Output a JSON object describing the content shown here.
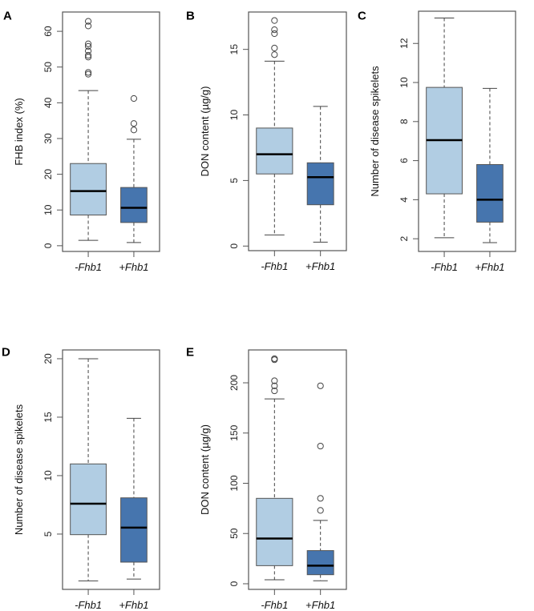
{
  "chart_data": [
    {
      "panel": "A",
      "type": "boxplot",
      "ylabel": "FHB index (%)",
      "ylim": [
        -1.6,
        65.4
      ],
      "yticks": [
        "0",
        "10",
        "20",
        "30",
        "40",
        "50",
        "60"
      ],
      "categories": [
        "-Fhb1",
        "+Fhb1"
      ],
      "colors": [
        "#b1cde3",
        "#4675ae"
      ],
      "boxes": [
        {
          "min": 1.5,
          "q1": 8.6,
          "median": 15.3,
          "q3": 23.0,
          "max": 43.4,
          "outliers": [
            48,
            48.5,
            52.8,
            53.3,
            54.5,
            55.8,
            56.5,
            61.5,
            62.8
          ]
        },
        {
          "min": 0.9,
          "q1": 6.5,
          "median": 10.6,
          "q3": 16.3,
          "max": 29.8,
          "outliers": [
            32.4,
            34.2,
            41.2
          ]
        }
      ]
    },
    {
      "panel": "B",
      "type": "boxplot",
      "ylabel": "DON content (µg/g)",
      "ylim": [
        -0.35,
        17.85
      ],
      "yticks": [
        "0",
        "5",
        "10",
        "15"
      ],
      "categories": [
        "-Fhb1",
        "+Fhb1"
      ],
      "colors": [
        "#b1cde3",
        "#4675ae"
      ],
      "boxes": [
        {
          "min": 0.85,
          "q1": 5.5,
          "median": 7.0,
          "q3": 9.0,
          "max": 14.1,
          "outliers": [
            14.6,
            15.1,
            16.2,
            16.5,
            17.2
          ]
        },
        {
          "min": 0.3,
          "q1": 3.15,
          "median": 5.25,
          "q3": 6.35,
          "max": 10.65,
          "outliers": []
        }
      ]
    },
    {
      "panel": "C",
      "type": "boxplot",
      "ylabel": "Number of disease spikelets",
      "ylim": [
        1.35,
        13.65
      ],
      "yticks": [
        "2",
        "4",
        "6",
        "8",
        "10",
        "12"
      ],
      "categories": [
        "-Fhb1",
        "+Fhb1"
      ],
      "colors": [
        "#b1cde3",
        "#4675ae"
      ],
      "boxes": [
        {
          "min": 2.05,
          "q1": 4.3,
          "median": 7.05,
          "q3": 9.75,
          "max": 13.3,
          "outliers": []
        },
        {
          "min": 1.8,
          "q1": 2.85,
          "median": 4.0,
          "q3": 5.8,
          "max": 9.7,
          "outliers": []
        }
      ]
    },
    {
      "panel": "D",
      "type": "boxplot",
      "ylabel": "Number of disease spikelets",
      "ylim": [
        0.27,
        20.75
      ],
      "yticks": [
        "5",
        "10",
        "15",
        "20"
      ],
      "categories": [
        "-Fhb1",
        "+Fhb1"
      ],
      "colors": [
        "#b1cde3",
        "#4675ae"
      ],
      "boxes": [
        {
          "min": 1.0,
          "q1": 4.95,
          "median": 7.6,
          "q3": 11.0,
          "max": 20.0,
          "outliers": []
        },
        {
          "min": 1.15,
          "q1": 2.6,
          "median": 5.55,
          "q3": 8.1,
          "max": 14.9,
          "outliers": []
        }
      ]
    },
    {
      "panel": "E",
      "type": "boxplot",
      "ylabel": "DON content (µg/g)",
      "ylim": [
        -5.6,
        232.7
      ],
      "yticks": [
        "0",
        "50",
        "100",
        "150",
        "200"
      ],
      "categories": [
        "-Fhb1",
        "+Fhb1"
      ],
      "colors": [
        "#b1cde3",
        "#4675ae"
      ],
      "boxes": [
        {
          "min": 4,
          "q1": 18,
          "median": 45,
          "q3": 85,
          "max": 184,
          "outliers": [
            192,
            197,
            202,
            223,
            224
          ]
        },
        {
          "min": 3,
          "q1": 9,
          "median": 18,
          "q3": 33,
          "max": 63,
          "outliers": [
            73,
            85,
            137,
            197
          ]
        }
      ]
    }
  ]
}
